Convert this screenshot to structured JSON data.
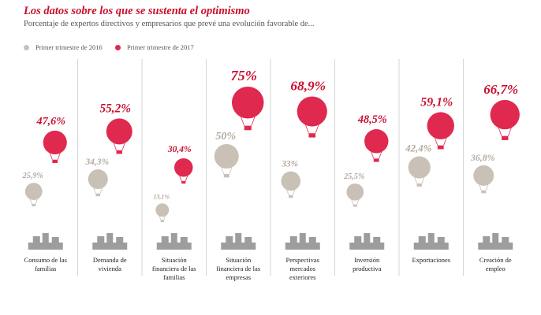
{
  "header": {
    "title": "Los datos sobre los que se sustenta el optimismo",
    "subtitle": "Porcentaje de expertos directivos y empresarios que prevé una evolución favorable de..."
  },
  "legend": [
    {
      "label": "Primer trimestre de 2016",
      "color": "#c9c0b6"
    },
    {
      "label": "Primer trimestre de 2017",
      "color": "#e0294f"
    }
  ],
  "colors": {
    "series_2016": "#c9c0b6",
    "series_2017": "#e0294f",
    "label_2016": "#b3aaa0",
    "label_2017": "#c8102e",
    "icon": "#8c8c8c",
    "divider": "#d6d6d6"
  },
  "icons": [
    "family-icon",
    "buildings-icon",
    "coins-family-icon",
    "factory-icon",
    "world-map-icon",
    "coin-stack-icon",
    "exchange-arrows-icon",
    "workers-icon"
  ],
  "chart_data": {
    "type": "pictorial-bar",
    "title": "Los datos sobre los que se sustenta el optimismo",
    "subtitle": "Porcentaje de expertos directivos y empresarios que prevé una evolución favorable de...",
    "categories": [
      [
        "Consumo de las",
        "familias"
      ],
      [
        "Demanda de",
        "vivienda"
      ],
      [
        "Situación",
        "financiera de las",
        "familias"
      ],
      [
        "Situación",
        "financiera de las",
        "empresas"
      ],
      [
        "Perspectivas",
        "mercados",
        "exteriores"
      ],
      [
        "Inversión",
        "productiva"
      ],
      [
        "Exportaciones"
      ],
      [
        "Creación de",
        "empleo"
      ]
    ],
    "series": [
      {
        "name": "Primer trimestre de 2016",
        "values": [
          25.9,
          34.3,
          13.1,
          50,
          33,
          25.5,
          42.4,
          36.8
        ],
        "labels": [
          "25,9%",
          "34,3%",
          "13,1%",
          "50%",
          "33%",
          "25,5%",
          "42,4%",
          "36,8%"
        ]
      },
      {
        "name": "Primer trimestre de 2017",
        "values": [
          47.6,
          55.2,
          30.4,
          75,
          68.9,
          48.5,
          59.1,
          66.7
        ],
        "labels": [
          "47,6%",
          "55,2%",
          "30,4%",
          "75%",
          "68,9%",
          "48,5%",
          "59,1%",
          "66,7%"
        ]
      }
    ],
    "ylim": [
      0,
      100
    ]
  }
}
